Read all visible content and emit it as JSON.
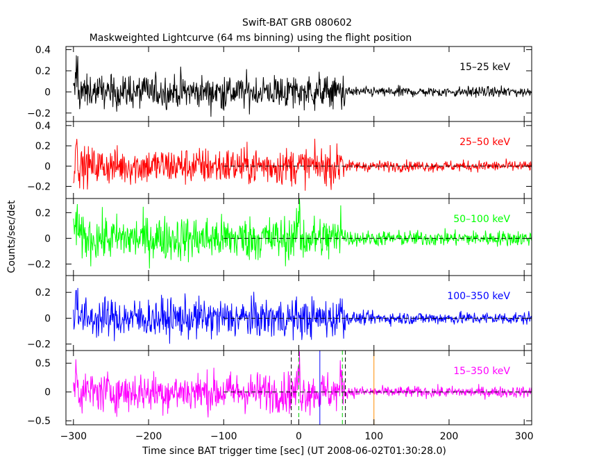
{
  "chart_data": {
    "type": "line",
    "title": "Swift-BAT GRB 080602",
    "subtitle": "Maskweighted Lightcurve (64 ms binning) using the flight position",
    "xlabel": "Time since BAT trigger time [sec] (UT 2008-06-02T01:30:28.0)",
    "ylabel": "Counts/sec/det",
    "xlim": [
      -310,
      310
    ],
    "x_ticks": [
      -300,
      -200,
      -100,
      0,
      100,
      200,
      300
    ],
    "x_tick_labels": [
      "−300",
      "−200",
      "−100",
      "0",
      "100",
      "200",
      "300"
    ],
    "grid": false,
    "panels": [
      {
        "name": "15–25 keV",
        "color": "#000000",
        "ylim": [
          -0.28,
          0.43
        ],
        "y_ticks": [
          -0.2,
          0,
          0.2,
          0.4
        ],
        "y_tick_labels": [
          "−0.2",
          "0",
          "0.2",
          "0.4"
        ],
        "pre_noise": 0.15,
        "post_noise": 0.045,
        "drop_time": 62,
        "pre_level": [
          [
            -300,
            0.0
          ],
          [
            -100,
            0.0
          ],
          [
            50,
            0.0
          ]
        ],
        "spikes": [
          [
            -296,
            0.3
          ]
        ],
        "zero_line": false
      },
      {
        "name": "25–50 keV",
        "color": "#ff0000",
        "ylim": [
          -0.32,
          0.44
        ],
        "y_ticks": [
          -0.2,
          0,
          0.2,
          0.4
        ],
        "y_tick_labels": [
          "−0.2",
          "0",
          "0.2",
          "0.4"
        ],
        "pre_noise": 0.17,
        "post_noise": 0.05,
        "drop_time": 60,
        "pre_level": [
          [
            -300,
            0.0
          ],
          [
            50,
            0.0
          ]
        ],
        "spikes": [
          [
            -296,
            0.32
          ],
          [
            57,
            0.16
          ]
        ],
        "zero_line": true
      },
      {
        "name": "50–100 keV",
        "color": "#00ff00",
        "ylim": [
          -0.29,
          0.31
        ],
        "y_ticks": [
          -0.2,
          0,
          0.2
        ],
        "y_tick_labels": [
          "−0.2",
          "0",
          "0.2"
        ],
        "pre_noise": 0.16,
        "post_noise": 0.055,
        "drop_time": 62,
        "pre_level": [
          [
            -300,
            0.0
          ],
          [
            50,
            0.0
          ]
        ],
        "spikes": [
          [
            -296,
            0.25
          ],
          [
            0,
            0.3
          ],
          [
            57,
            0.25
          ]
        ],
        "zero_line": true
      },
      {
        "name": "100–350 keV",
        "color": "#0000ff",
        "ylim": [
          -0.25,
          0.33
        ],
        "y_ticks": [
          -0.2,
          0,
          0.2
        ],
        "y_tick_labels": [
          "−0.2",
          "0",
          "0.2"
        ],
        "pre_noise": 0.14,
        "post_noise": 0.045,
        "drop_time": 62,
        "pre_level": [
          [
            -300,
            0.0
          ],
          [
            50,
            0.0
          ]
        ],
        "spikes": [
          [
            -296,
            0.33
          ],
          [
            57,
            0.15
          ]
        ],
        "zero_line": true
      },
      {
        "name": "15–350 keV",
        "color": "#ff00ff",
        "ylim": [
          -0.57,
          0.72
        ],
        "y_ticks": [
          -0.5,
          0,
          0.5
        ],
        "y_tick_labels": [
          "−0.5",
          "0",
          "0.5"
        ],
        "pre_noise": 0.32,
        "post_noise": 0.09,
        "drop_time": 62,
        "pre_level": [
          [
            -300,
            0.0
          ],
          [
            50,
            0.0
          ]
        ],
        "spikes": [
          [
            -296,
            0.6
          ],
          [
            0,
            0.55
          ],
          [
            57,
            0.35
          ]
        ],
        "zero_line": true
      }
    ],
    "markers": [
      {
        "x": -10,
        "color": "#000000",
        "style": "dashed"
      },
      {
        "x": 0,
        "color": "#00cc00",
        "style": "dashed"
      },
      {
        "x": 28,
        "color": "#0000ff",
        "style": "solid"
      },
      {
        "x": 58,
        "color": "#00cc00",
        "style": "dashed"
      },
      {
        "x": 62,
        "color": "#000000",
        "style": "dashed"
      },
      {
        "x": 100,
        "color": "#ff8c00",
        "style": "solid"
      }
    ],
    "zero_line_from": -100
  }
}
